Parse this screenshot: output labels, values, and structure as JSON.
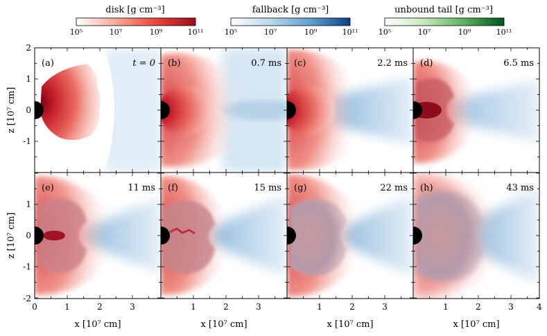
{
  "colorbars": [
    {
      "label": "disk [g cm⁻³]",
      "ticks": [
        "10⁵",
        "10⁷",
        "10⁹",
        "10¹¹"
      ],
      "colors": [
        "#ffffff",
        "#f6a99b",
        "#e8463a",
        "#9c0d1c"
      ]
    },
    {
      "label": "fallback [g cm⁻³]",
      "ticks": [
        "10⁵",
        "10⁷",
        "10⁹",
        "10¹¹"
      ],
      "colors": [
        "#ffffff",
        "#bcd6ea",
        "#5fa0cf",
        "#0e3f86"
      ]
    },
    {
      "label": "unbound tail [g cm⁻³]",
      "ticks": [
        "10⁵",
        "10⁷",
        "10⁹",
        "10¹¹"
      ],
      "colors": [
        "#ffffff",
        "#c8e8bc",
        "#5cb05f",
        "#00521f"
      ]
    }
  ],
  "panels": [
    {
      "letter": "(a)",
      "time": "t = 0"
    },
    {
      "letter": "(b)",
      "time": "0.7 ms"
    },
    {
      "letter": "(c)",
      "time": "2.2 ms"
    },
    {
      "letter": "(d)",
      "time": "6.5 ms"
    },
    {
      "letter": "(e)",
      "time": "11 ms"
    },
    {
      "letter": "(f)",
      "time": "15 ms"
    },
    {
      "letter": "(g)",
      "time": "22 ms"
    },
    {
      "letter": "(h)",
      "time": "43 ms"
    }
  ],
  "axes": {
    "xlabel": "x [10⁷ cm]",
    "ylabel": "z [10⁷ cm]",
    "xticks_first": [
      "0",
      "1",
      "2",
      "3"
    ],
    "xticks_mid": [
      "1",
      "2",
      "3"
    ],
    "xticks_last": [
      "1",
      "2",
      "3",
      "4"
    ],
    "yticks_top": [
      "2",
      "1",
      "0",
      "-1"
    ],
    "yticks_bottom": [
      "1",
      "0",
      "-1",
      "-2"
    ]
  }
}
